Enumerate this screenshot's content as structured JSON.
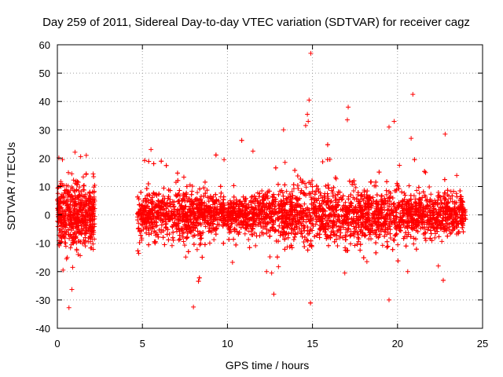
{
  "chart_data": {
    "type": "scatter",
    "title": "Day 259 of 2011, Sidereal Day-to-day VTEC variation (SDTVAR) for receiver cagz",
    "xlabel": "GPS time / hours",
    "ylabel": "SDTVAR / TECUs",
    "xlim": [
      0,
      25
    ],
    "ylim": [
      -40,
      60
    ],
    "xticks": [
      0,
      5,
      10,
      15,
      20,
      25
    ],
    "yticks": [
      -40,
      -30,
      -20,
      -10,
      0,
      10,
      20,
      30,
      40,
      50,
      60
    ],
    "xtick_labels": [
      "0",
      "5",
      "10",
      "15",
      "20",
      "25"
    ],
    "ytick_labels": [
      "-40",
      "-30",
      "-20",
      "-10",
      "0",
      "10",
      "20",
      "30",
      "40",
      "50",
      "60"
    ],
    "grid": true,
    "marker": "+",
    "color": "#ff0000",
    "series": [
      {
        "name": "SDTVAR",
        "segments": [
          {
            "x_start": 0.0,
            "x_end": 2.2,
            "base_spread": 7
          },
          {
            "x_start": 4.7,
            "x_end": 24.0,
            "base_spread": 5
          }
        ],
        "envelope": [
          {
            "x": 0.0,
            "spread": 7
          },
          {
            "x": 1.0,
            "spread": 8
          },
          {
            "x": 2.2,
            "spread": 7
          },
          {
            "x": 4.7,
            "spread": 5
          },
          {
            "x": 7.0,
            "spread": 6
          },
          {
            "x": 10.0,
            "spread": 4
          },
          {
            "x": 12.0,
            "spread": 5
          },
          {
            "x": 14.5,
            "spread": 7
          },
          {
            "x": 17.0,
            "spread": 6
          },
          {
            "x": 20.0,
            "spread": 6
          },
          {
            "x": 22.0,
            "spread": 5
          },
          {
            "x": 24.0,
            "spread": 5
          }
        ],
        "outliers": [
          {
            "x": 14.9,
            "y": 57
          },
          {
            "x": 14.8,
            "y": 40.5
          },
          {
            "x": 20.9,
            "y": 42.5
          },
          {
            "x": 17.1,
            "y": 38
          },
          {
            "x": 14.7,
            "y": 35.5
          },
          {
            "x": 14.75,
            "y": 33
          },
          {
            "x": 14.6,
            "y": 31.5
          },
          {
            "x": 17.05,
            "y": 33.5
          },
          {
            "x": 19.8,
            "y": 33
          },
          {
            "x": 13.3,
            "y": 30
          },
          {
            "x": 20.8,
            "y": 27
          },
          {
            "x": 22.8,
            "y": 28.5
          },
          {
            "x": 19.5,
            "y": 31
          },
          {
            "x": 8.0,
            "y": -32.5
          },
          {
            "x": 19.5,
            "y": -30
          },
          {
            "x": 0.9,
            "y": -18.5
          },
          {
            "x": 12.3,
            "y": -20
          },
          {
            "x": 12.6,
            "y": -20.5
          },
          {
            "x": 20.6,
            "y": -20
          },
          {
            "x": 16.9,
            "y": -20.5
          },
          {
            "x": 22.4,
            "y": -18
          },
          {
            "x": 13.0,
            "y": -18.3
          },
          {
            "x": 11.5,
            "y": 22.5
          },
          {
            "x": 1.7,
            "y": 21
          },
          {
            "x": 0.3,
            "y": 19.5
          },
          {
            "x": 9.8,
            "y": 19.5
          },
          {
            "x": 18.2,
            "y": -16.5
          }
        ]
      }
    ]
  }
}
